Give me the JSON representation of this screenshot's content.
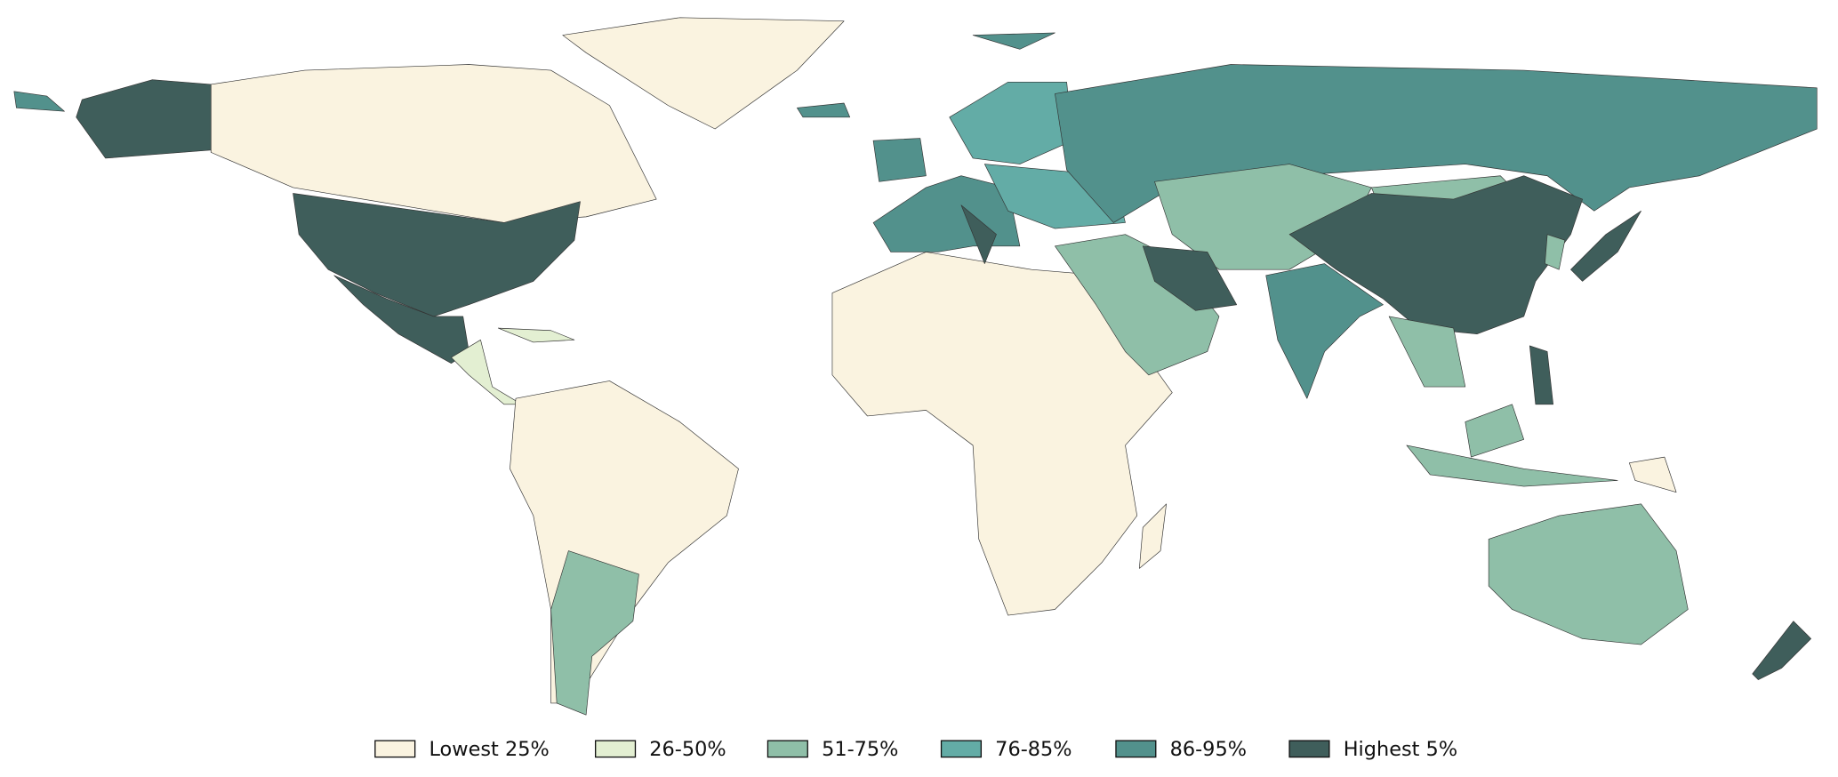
{
  "legend": {
    "items": [
      {
        "label": "Lowest 25%",
        "color": "#faf3e0"
      },
      {
        "label": "26-50%",
        "color": "#e3efd2"
      },
      {
        "label": "51-75%",
        "color": "#8fbfa8"
      },
      {
        "label": "76-85%",
        "color": "#63aca6"
      },
      {
        "label": "86-95%",
        "color": "#52918c"
      },
      {
        "label": "Highest 5%",
        "color": "#3f5e5b"
      }
    ]
  }
}
